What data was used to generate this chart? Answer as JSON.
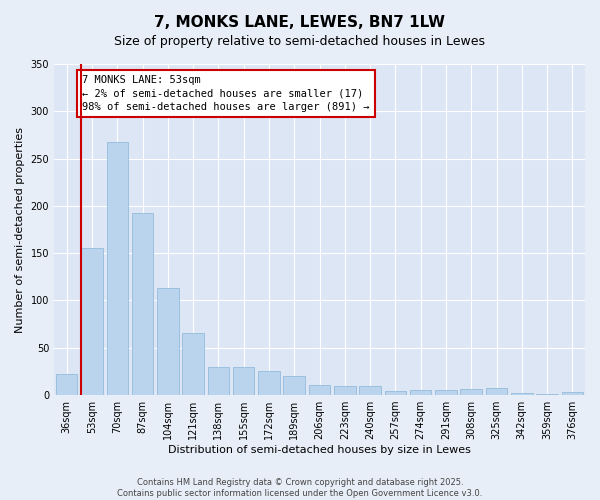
{
  "title": "7, MONKS LANE, LEWES, BN7 1LW",
  "subtitle": "Size of property relative to semi-detached houses in Lewes",
  "xlabel": "Distribution of semi-detached houses by size in Lewes",
  "ylabel": "Number of semi-detached properties",
  "categories": [
    "36sqm",
    "53sqm",
    "70sqm",
    "87sqm",
    "104sqm",
    "121sqm",
    "138sqm",
    "155sqm",
    "172sqm",
    "189sqm",
    "206sqm",
    "223sqm",
    "240sqm",
    "257sqm",
    "274sqm",
    "291sqm",
    "308sqm",
    "325sqm",
    "342sqm",
    "359sqm",
    "376sqm"
  ],
  "values": [
    22,
    155,
    268,
    193,
    113,
    66,
    30,
    30,
    25,
    20,
    11,
    10,
    10,
    4,
    5,
    5,
    6,
    7,
    2,
    1,
    3
  ],
  "bar_color": "#bad4ed",
  "bar_edge_color": "#8ab4d8",
  "highlight_index": 1,
  "highlight_color": "#cc0000",
  "ylim": [
    0,
    350
  ],
  "yticks": [
    0,
    50,
    100,
    150,
    200,
    250,
    300,
    350
  ],
  "annotation_text": "7 MONKS LANE: 53sqm\n← 2% of semi-detached houses are smaller (17)\n98% of semi-detached houses are larger (891) →",
  "footnote": "Contains HM Land Registry data © Crown copyright and database right 2025.\nContains public sector information licensed under the Open Government Licence v3.0.",
  "bg_color": "#e8eef8",
  "plot_bg_color": "#dce6f5",
  "title_fontsize": 11,
  "subtitle_fontsize": 9,
  "axis_label_fontsize": 8,
  "tick_fontsize": 7,
  "annotation_fontsize": 7.5,
  "footnote_fontsize": 6
}
